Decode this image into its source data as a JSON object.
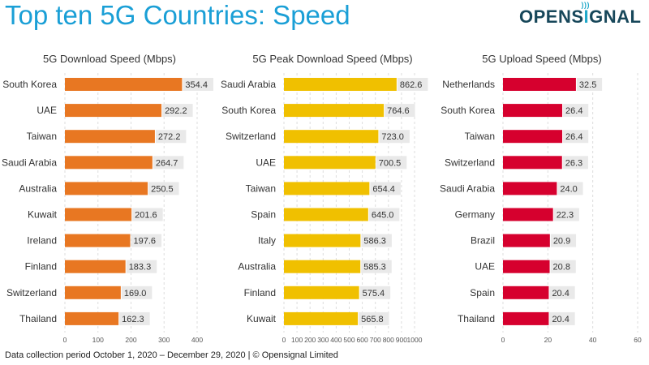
{
  "header": {
    "title": "Top ten 5G Countries: Speed",
    "logo_text": "OPENSIGNAL"
  },
  "footer": {
    "text": "Data collection period October 1, 2020 – December 29, 2020  |  © Opensignal Limited"
  },
  "colors": {
    "title": "#1a9fd6",
    "logo": "#17475a",
    "logo_accent": "#1fa8c9"
  },
  "chart_data": [
    {
      "type": "bar",
      "orientation": "horizontal",
      "title": "5G Download Speed (Mbps)",
      "categories": [
        "South Korea",
        "UAE",
        "Taiwan",
        "Saudi Arabia",
        "Australia",
        "Kuwait",
        "Ireland",
        "Finland",
        "Switzerland",
        "Thailand"
      ],
      "values": [
        354.4,
        292.2,
        272.2,
        264.7,
        250.5,
        201.6,
        197.6,
        183.3,
        169.0,
        162.3
      ],
      "labels": [
        "354.4",
        "292.2",
        "272.2",
        "264.7",
        "250.5",
        "201.6",
        "197.6",
        "183.3",
        "169.0",
        "162.3"
      ],
      "xlim": [
        0,
        400
      ],
      "ticks": [
        "0",
        "100",
        "200",
        "300",
        "400"
      ],
      "tick_values": [
        0,
        100,
        200,
        300,
        400
      ],
      "color": "#e87722",
      "grid": true
    },
    {
      "type": "bar",
      "orientation": "horizontal",
      "title": "5G Peak Download Speed (Mbps)",
      "categories": [
        "Saudi Arabia",
        "South Korea",
        "Switzerland",
        "UAE",
        "Taiwan",
        "Spain",
        "Italy",
        "Australia",
        "Finland",
        "Kuwait"
      ],
      "values": [
        862.6,
        764.6,
        723.0,
        700.5,
        654.4,
        645.0,
        586.3,
        585.3,
        575.4,
        565.8
      ],
      "labels": [
        "862.6",
        "764.6",
        "723.0",
        "700.5",
        "654.4",
        "645.0",
        "586.3",
        "585.3",
        "575.4",
        "565.8"
      ],
      "xlim": [
        0,
        1000
      ],
      "ticks": [
        "0",
        "100",
        "200",
        "300",
        "400",
        "500",
        "600",
        "700",
        "800",
        "900",
        "1000"
      ],
      "tick_values": [
        0,
        100,
        200,
        300,
        400,
        500,
        600,
        700,
        800,
        900,
        1000
      ],
      "color": "#f0c000",
      "grid": true
    },
    {
      "type": "bar",
      "orientation": "horizontal",
      "title": "5G Upload Speed (Mbps)",
      "categories": [
        "Netherlands",
        "South Korea",
        "Taiwan",
        "Switzerland",
        "Saudi Arabia",
        "Germany",
        "Brazil",
        "UAE",
        "Spain",
        "Thailand"
      ],
      "values": [
        32.5,
        26.4,
        26.4,
        26.3,
        24.0,
        22.3,
        20.9,
        20.8,
        20.4,
        20.4
      ],
      "labels": [
        "32.5",
        "26.4",
        "26.4",
        "26.3",
        "24.0",
        "22.3",
        "20.9",
        "20.8",
        "20.4",
        "20.4"
      ],
      "xlim": [
        0,
        60
      ],
      "ticks": [
        "0",
        "20",
        "40",
        "60"
      ],
      "tick_values": [
        0,
        20,
        40,
        60
      ],
      "color": "#d6002e",
      "grid": true
    }
  ]
}
